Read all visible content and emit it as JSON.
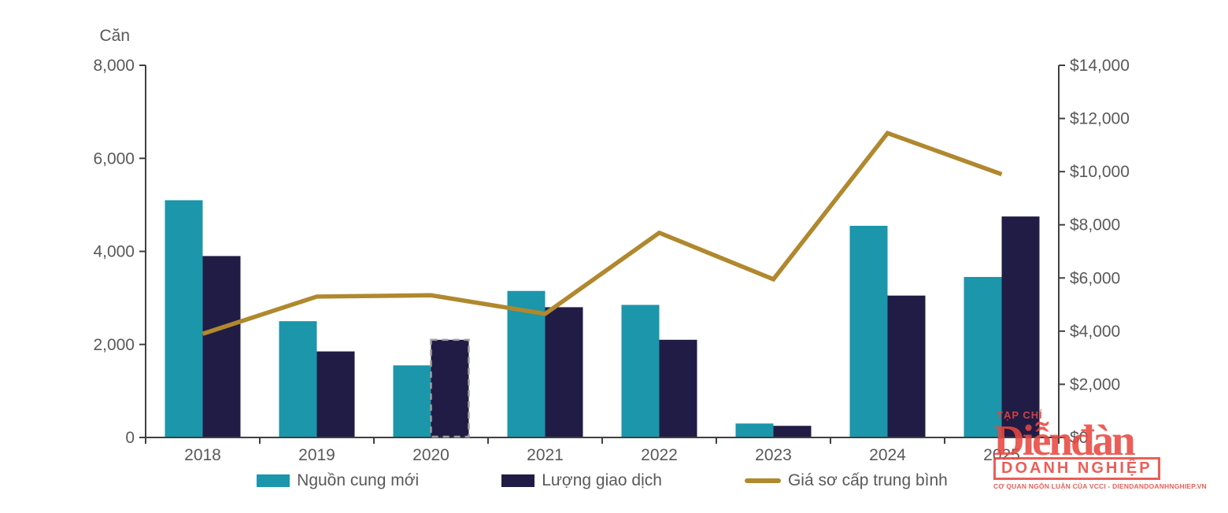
{
  "page": {
    "background": "#ffffff"
  },
  "colors": {
    "bar_new_supply": "#1b96ab",
    "bar_transactions": "#211c45",
    "line_price": "#b0882e",
    "axis_line": "#404040",
    "tick_text": "#595959",
    "highlight_outline": "#9e9e9e",
    "logo_red": "#e9473f"
  },
  "chart_data": {
    "type": "bar",
    "subtype": "dual-axis bar + line combo",
    "title": "",
    "categories": [
      "2018",
      "2019",
      "2020",
      "2021",
      "2022",
      "2023",
      "2024",
      "2025"
    ],
    "series": [
      {
        "name": "Nguồn cung mới",
        "type": "bar",
        "axis": "left",
        "color": "#1b96ab",
        "values": [
          5100,
          2500,
          1550,
          3150,
          2850,
          300,
          4550,
          3450
        ]
      },
      {
        "name": "Lượng giao dịch",
        "type": "bar",
        "axis": "left",
        "color": "#211c45",
        "values": [
          3900,
          1850,
          2100,
          2800,
          2100,
          250,
          3050,
          4750
        ],
        "dashed_outline_category": "2020"
      },
      {
        "name": "Giá sơ cấp trung bình",
        "type": "line",
        "axis": "right",
        "color": "#b0882e",
        "values": [
          3900,
          5300,
          5350,
          4650,
          7700,
          5950,
          11450,
          9900
        ]
      }
    ],
    "left_axis": {
      "title": "Căn",
      "min": 0,
      "max": 8000,
      "step": 2000,
      "tick_labels": [
        "0",
        "2,000",
        "4,000",
        "6,000",
        "8,000"
      ]
    },
    "right_axis": {
      "title": "",
      "min": 0,
      "max": 14000,
      "step": 2000,
      "tick_labels": [
        "$0",
        "$2,000",
        "$4,000",
        "$6,000",
        "$8,000",
        "$10,000",
        "$12,000",
        "$14,000"
      ]
    },
    "grid": false,
    "legend_position": "bottom"
  },
  "legend": {
    "item1": "Nguồn cung mới",
    "item2": "Lượng giao dịch",
    "item3": "Giá sơ cấp trung bình"
  },
  "watermark": {
    "tagline_top": "TẠP CHÍ",
    "title": "Diễnđàn",
    "subtitle": "DOANH NGHIỆP",
    "tagline_bottom": "CƠ QUAN NGÔN LUẬN CỦA VCCI - DIENDANDOANHNGHIEP.VN"
  }
}
